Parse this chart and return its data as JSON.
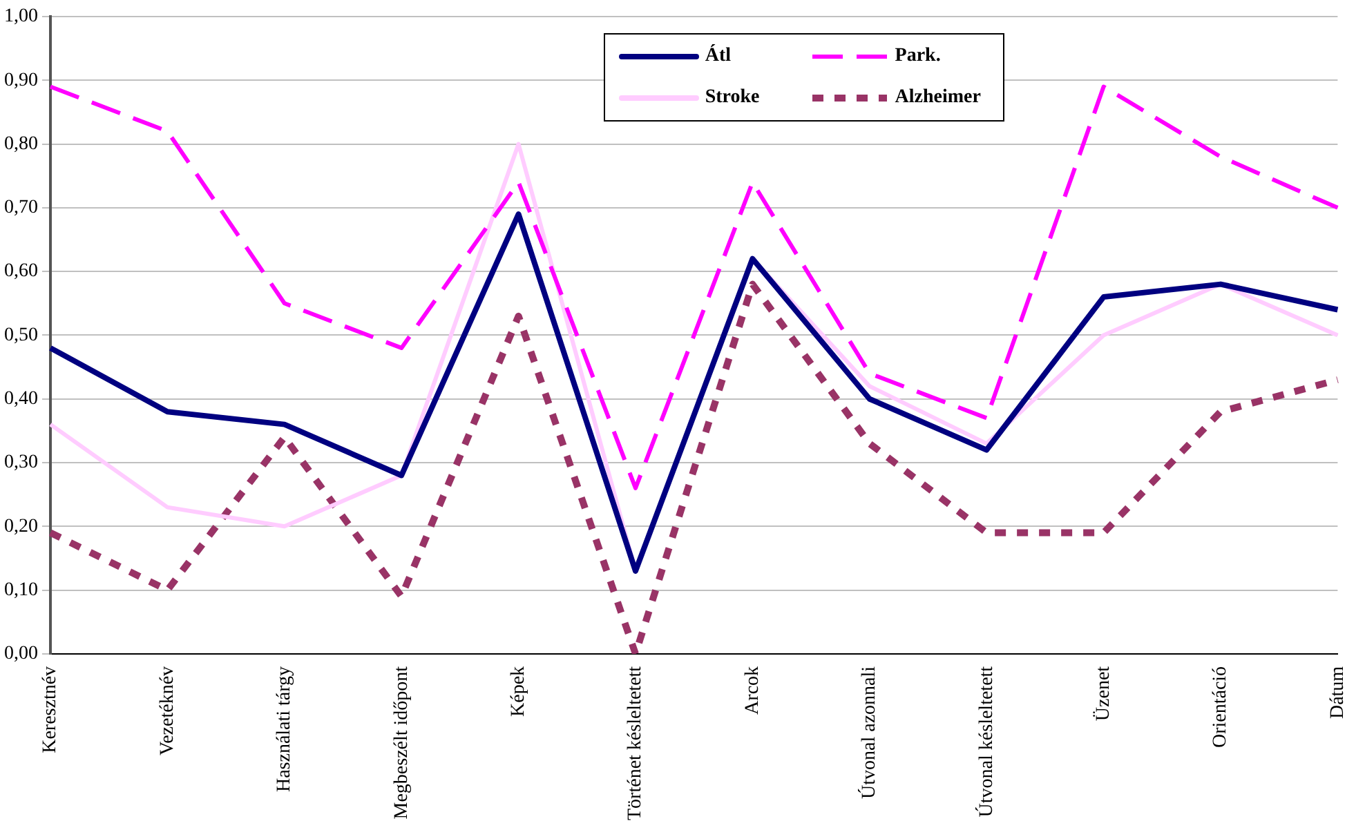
{
  "chart_data": {
    "type": "line",
    "categories": [
      "Keresztnév",
      "Vezetéknév",
      "Használati tárgy",
      "Megbeszélt időpont",
      "Képek",
      "Történet késleltetett",
      "Arcok",
      "Útvonal azonnali",
      "Útvonal késleltetett",
      "Üzenet",
      "Orientáció",
      "Dátum"
    ],
    "series": [
      {
        "name": "Átl",
        "color": "#000080",
        "line_style": "solid",
        "values": [
          0.48,
          0.38,
          0.36,
          0.28,
          0.69,
          0.13,
          0.62,
          0.4,
          0.32,
          0.56,
          0.58,
          0.54
        ]
      },
      {
        "name": "Park.",
        "color": "#ff00ff",
        "line_style": "dashed",
        "values": [
          0.89,
          0.82,
          0.55,
          0.48,
          0.74,
          0.26,
          0.74,
          0.44,
          0.37,
          0.89,
          0.78,
          0.7
        ]
      },
      {
        "name": "Stroke",
        "color": "#ffccff",
        "line_style": "solid",
        "values": [
          0.36,
          0.23,
          0.2,
          0.28,
          0.8,
          0.13,
          0.62,
          0.42,
          0.33,
          0.5,
          0.58,
          0.5
        ]
      },
      {
        "name": "Alzheimer",
        "color": "#993366",
        "line_style": "dotted",
        "values": [
          0.19,
          0.1,
          0.34,
          0.09,
          0.53,
          0.0,
          0.58,
          0.33,
          0.19,
          0.19,
          0.38,
          0.43
        ]
      }
    ],
    "ylim": [
      0,
      1
    ],
    "yticks": [
      {
        "value": 0,
        "label": "0,00"
      },
      {
        "value": 0.1,
        "label": "0,10"
      },
      {
        "value": 0.2,
        "label": "0,20"
      },
      {
        "value": 0.3,
        "label": "0,30"
      },
      {
        "value": 0.4,
        "label": "0,40"
      },
      {
        "value": 0.5,
        "label": "0,50"
      },
      {
        "value": 0.6,
        "label": "0,60"
      },
      {
        "value": 0.7,
        "label": "0,70"
      },
      {
        "value": 0.8,
        "label": "0,80"
      },
      {
        "value": 0.9,
        "label": "0,90"
      },
      {
        "value": 1,
        "label": "1,00"
      }
    ],
    "grid": "y",
    "legend": "top",
    "marker": "none"
  }
}
